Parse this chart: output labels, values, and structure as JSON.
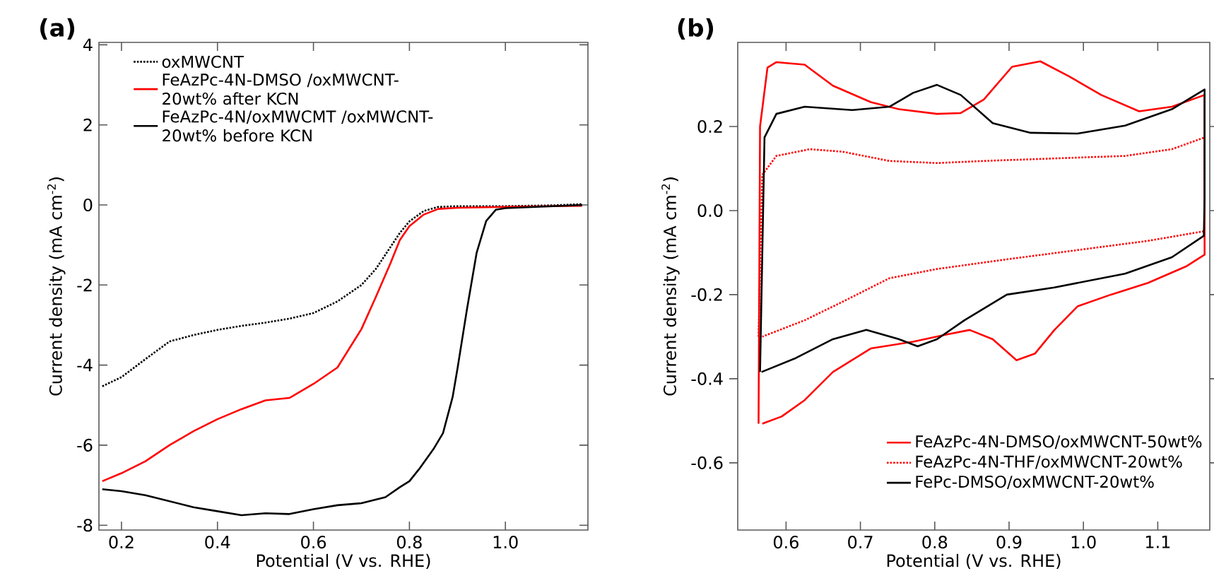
{
  "chart_data": [
    {
      "type": "line",
      "title": "(a)",
      "xlabel": "Potential (V vs. RHE)",
      "ylabel": "Current density (mA cm$^{-2}$)",
      "xlim": [
        0.153,
        1.172
      ],
      "ylim": [
        -8.12,
        4.06
      ],
      "xticks": [
        {
          "value": 0.2,
          "label": "0.2"
        },
        {
          "value": 0.4,
          "label": "0.4"
        },
        {
          "value": 0.6,
          "label": "0.6"
        },
        {
          "value": 0.8,
          "label": "0.8"
        },
        {
          "value": 1.0,
          "label": "1.0"
        }
      ],
      "yticks": [
        -8,
        -6,
        -4,
        -2,
        0,
        2,
        4
      ],
      "legend": "top left",
      "series": [
        {
          "name": "oxMWCNT",
          "color": "#000000",
          "line_style": "dotted",
          "x": [
            0.16,
            0.2,
            0.25,
            0.3,
            0.35,
            0.4,
            0.45,
            0.5,
            0.55,
            0.6,
            0.65,
            0.7,
            0.73,
            0.75,
            0.78,
            0.8,
            0.83,
            0.86,
            0.9,
            1.0,
            1.1,
            1.16
          ],
          "values": [
            -4.53,
            -4.3,
            -3.85,
            -3.41,
            -3.25,
            -3.12,
            -3.02,
            -2.94,
            -2.84,
            -2.7,
            -2.41,
            -2.0,
            -1.6,
            -1.24,
            -0.7,
            -0.41,
            -0.15,
            -0.05,
            -0.03,
            -0.03,
            -0.01,
            0.02
          ]
        },
        {
          "name": "FeAzPc-4N-DMSO /oxMWCNT-20wt% after KCN",
          "color": "#ff0000",
          "line_style": "solid",
          "x": [
            0.16,
            0.2,
            0.25,
            0.3,
            0.35,
            0.4,
            0.45,
            0.5,
            0.55,
            0.6,
            0.65,
            0.7,
            0.73,
            0.76,
            0.78,
            0.8,
            0.83,
            0.86,
            0.9,
            1.0,
            1.1,
            1.16
          ],
          "values": [
            -6.9,
            -6.7,
            -6.4,
            -6.0,
            -5.65,
            -5.35,
            -5.1,
            -4.88,
            -4.82,
            -4.47,
            -4.06,
            -3.1,
            -2.3,
            -1.47,
            -0.88,
            -0.53,
            -0.24,
            -0.1,
            -0.07,
            -0.05,
            -0.03,
            -0.02
          ]
        },
        {
          "name": "FeAzPc-4N/oxMWCMT /oxMWCNT-20wt% before KCN",
          "color": "#000000",
          "line_style": "solid",
          "x": [
            0.16,
            0.2,
            0.25,
            0.3,
            0.35,
            0.4,
            0.45,
            0.5,
            0.55,
            0.6,
            0.65,
            0.7,
            0.75,
            0.78,
            0.8,
            0.82,
            0.85,
            0.87,
            0.89,
            0.9,
            0.92,
            0.94,
            0.96,
            0.98,
            1.0,
            1.1,
            1.16
          ],
          "values": [
            -7.1,
            -7.15,
            -7.25,
            -7.4,
            -7.55,
            -7.65,
            -7.75,
            -7.7,
            -7.72,
            -7.6,
            -7.5,
            -7.45,
            -7.3,
            -7.05,
            -6.9,
            -6.6,
            -6.1,
            -5.7,
            -4.8,
            -4.1,
            -2.6,
            -1.2,
            -0.4,
            -0.12,
            -0.08,
            -0.03,
            0.0
          ]
        }
      ]
    },
    {
      "type": "line",
      "title": "(b)",
      "xlabel": "Potential (V vs. RHE)",
      "ylabel": "Current density (mA cm$^{-2}$)",
      "xlim": [
        0.535,
        1.17
      ],
      "ylim": [
        -0.76,
        0.4
      ],
      "xticks": [
        {
          "value": 0.6,
          "label": "0.6"
        },
        {
          "value": 0.7,
          "label": "0.7"
        },
        {
          "value": 0.8,
          "label": "0.8"
        },
        {
          "value": 0.9,
          "label": "0.9"
        },
        {
          "value": 1.0,
          "label": "1.0"
        },
        {
          "value": 1.1,
          "label": "1.1"
        }
      ],
      "yticks": [
        {
          "value": -0.6,
          "label": "-0.6"
        },
        {
          "value": -0.4,
          "label": "-0.4"
        },
        {
          "value": -0.2,
          "label": "-0.2"
        },
        {
          "value": 0.0,
          "label": "0.0"
        },
        {
          "value": 0.2,
          "label": "0.2"
        }
      ],
      "legend": "bottom right",
      "series": [
        {
          "name": "FeAzPc-4N-DMSO/oxMWCNT-50wt%",
          "color": "#ff0000",
          "line_style": "solid",
          "x": [
            0.563,
            0.565,
            0.575,
            0.587,
            0.625,
            0.663,
            0.714,
            0.752,
            0.803,
            0.835,
            0.866,
            0.904,
            0.942,
            0.98,
            1.024,
            1.075,
            1.119,
            1.163,
            1.163,
            1.138,
            1.087,
            1.037,
            0.992,
            0.961,
            0.935,
            0.91,
            0.878,
            0.847,
            0.815,
            0.771,
            0.714,
            0.663,
            0.625,
            0.594,
            0.568
          ],
          "values": [
            -0.507,
            0.2,
            0.34,
            0.353,
            0.347,
            0.297,
            0.258,
            0.241,
            0.23,
            0.232,
            0.264,
            0.342,
            0.355,
            0.32,
            0.275,
            0.236,
            0.247,
            0.275,
            -0.105,
            -0.133,
            -0.172,
            -0.2,
            -0.228,
            -0.284,
            -0.34,
            -0.356,
            -0.306,
            -0.284,
            -0.295,
            -0.312,
            -0.328,
            -0.384,
            -0.451,
            -0.49,
            -0.507
          ]
        },
        {
          "name": "FeAzPc-4N-THF/oxMWCNT-20wt%",
          "color": "#ff0000",
          "line_style": "dotted",
          "x": [
            0.563,
            0.568,
            0.587,
            0.632,
            0.676,
            0.739,
            0.803,
            0.866,
            0.961,
            1.056,
            1.119,
            1.163,
            1.163,
            1.087,
            0.992,
            0.897,
            0.803,
            0.739,
            0.676,
            0.625,
            0.568
          ],
          "values": [
            -0.3,
            0.085,
            0.13,
            0.146,
            0.14,
            0.118,
            0.113,
            0.118,
            0.124,
            0.13,
            0.146,
            0.174,
            -0.049,
            -0.072,
            -0.094,
            -0.116,
            -0.139,
            -0.161,
            -0.217,
            -0.261,
            -0.3
          ]
        },
        {
          "name": "FePc-DMSO/oxMWCNT-20wt%",
          "color": "#000000",
          "line_style": "solid",
          "x": [
            0.565,
            0.571,
            0.587,
            0.625,
            0.689,
            0.739,
            0.771,
            0.803,
            0.835,
            0.878,
            0.929,
            0.992,
            1.056,
            1.119,
            1.163,
            1.163,
            1.162,
            1.119,
            1.056,
            0.961,
            0.897,
            0.84,
            0.803,
            0.777,
            0.752,
            0.708,
            0.663,
            0.613,
            0.567
          ],
          "values": [
            -0.384,
            0.174,
            0.23,
            0.247,
            0.239,
            0.247,
            0.28,
            0.299,
            0.275,
            0.208,
            0.185,
            0.183,
            0.202,
            0.241,
            0.288,
            0.029,
            -0.06,
            -0.111,
            -0.15,
            -0.183,
            -0.2,
            -0.261,
            -0.306,
            -0.323,
            -0.306,
            -0.284,
            -0.306,
            -0.351,
            -0.384
          ]
        }
      ]
    }
  ]
}
